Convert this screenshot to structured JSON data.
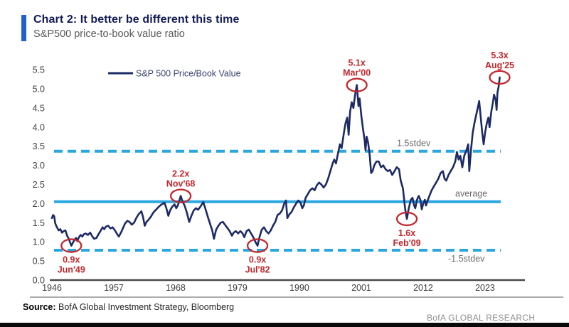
{
  "header": {
    "title": "Chart 2: It better be different this time",
    "subtitle": "S&P500 price-to-book value ratio"
  },
  "footer": {
    "source_label": "Source:",
    "source_text": " BofA Global Investment Strategy, Bloomberg",
    "brand": "BofA GLOBAL RESEARCH"
  },
  "colors": {
    "accent_blue": "#1e5fd2",
    "title_navy": "#121b55",
    "series_navy": "#1c2a66",
    "cyan": "#2aa7e1",
    "red": "#c2272d",
    "axis_gray": "#4a4a4a"
  },
  "chart_data": {
    "type": "line",
    "legend": [
      "S&P 500 Price/Book Value"
    ],
    "xlabel": "",
    "ylabel": "",
    "xlim": [
      1946,
      2030
    ],
    "ylim": [
      0,
      5.5
    ],
    "grid": false,
    "legend_position": "top-left",
    "x_ticks": [
      1946,
      1957,
      1968,
      1979,
      1990,
      2001,
      2012,
      2023
    ],
    "y_ticks": [
      0.0,
      0.5,
      1.0,
      1.5,
      2.0,
      2.5,
      3.0,
      3.5,
      4.0,
      4.5,
      5.0,
      5.5
    ],
    "reference_lines": [
      {
        "label": "1.5stdev",
        "value": 3.37,
        "style": "dashed"
      },
      {
        "label": "average",
        "value": 2.05,
        "style": "solid"
      },
      {
        "label": "-1.5stdev",
        "value": 0.78,
        "style": "dashed"
      }
    ],
    "annotations": [
      {
        "value_label": "0.9x",
        "date_label": "Jun'49",
        "x": 1949.45,
        "y": 0.9,
        "text_position": "below"
      },
      {
        "value_label": "2.2x",
        "date_label": "Nov'68",
        "x": 1968.9,
        "y": 2.2,
        "text_position": "above"
      },
      {
        "value_label": "0.9x",
        "date_label": "Jul'82",
        "x": 1982.55,
        "y": 0.9,
        "text_position": "below"
      },
      {
        "value_label": "5.1x",
        "date_label": "Mar'00",
        "x": 2000.2,
        "y": 5.1,
        "text_position": "above"
      },
      {
        "value_label": "1.6x",
        "date_label": "Feb'09",
        "x": 2009.1,
        "y": 1.6,
        "text_position": "below"
      },
      {
        "value_label": "5.3x",
        "date_label": "Aug'25",
        "x": 2025.6,
        "y": 5.3,
        "text_position": "above"
      }
    ],
    "series": [
      {
        "name": "S&P 500 Price/Book Value",
        "points": [
          [
            1946.0,
            1.62
          ],
          [
            1946.2,
            1.7
          ],
          [
            1946.4,
            1.67
          ],
          [
            1946.6,
            1.48
          ],
          [
            1946.9,
            1.38
          ],
          [
            1947.2,
            1.3
          ],
          [
            1947.5,
            1.33
          ],
          [
            1947.8,
            1.24
          ],
          [
            1948.1,
            1.28
          ],
          [
            1948.4,
            1.3
          ],
          [
            1948.7,
            1.16
          ],
          [
            1949.0,
            1.08
          ],
          [
            1949.2,
            1.0
          ],
          [
            1949.45,
            0.9
          ],
          [
            1949.7,
            0.97
          ],
          [
            1950.0,
            1.05
          ],
          [
            1950.3,
            1.1
          ],
          [
            1950.5,
            1.02
          ],
          [
            1950.8,
            1.12
          ],
          [
            1951.1,
            1.18
          ],
          [
            1951.4,
            1.14
          ],
          [
            1951.7,
            1.2
          ],
          [
            1952.0,
            1.22
          ],
          [
            1952.4,
            1.18
          ],
          [
            1952.8,
            1.24
          ],
          [
            1953.1,
            1.16
          ],
          [
            1953.5,
            1.08
          ],
          [
            1953.9,
            1.1
          ],
          [
            1954.3,
            1.2
          ],
          [
            1954.7,
            1.3
          ],
          [
            1955.0,
            1.38
          ],
          [
            1955.3,
            1.33
          ],
          [
            1955.6,
            1.4
          ],
          [
            1956.0,
            1.42
          ],
          [
            1956.4,
            1.35
          ],
          [
            1956.8,
            1.38
          ],
          [
            1957.2,
            1.3
          ],
          [
            1957.6,
            1.2
          ],
          [
            1957.9,
            1.14
          ],
          [
            1958.3,
            1.25
          ],
          [
            1958.7,
            1.38
          ],
          [
            1959.0,
            1.48
          ],
          [
            1959.4,
            1.55
          ],
          [
            1959.8,
            1.52
          ],
          [
            1960.2,
            1.45
          ],
          [
            1960.6,
            1.5
          ],
          [
            1961.0,
            1.62
          ],
          [
            1961.4,
            1.72
          ],
          [
            1961.9,
            1.8
          ],
          [
            1962.2,
            1.65
          ],
          [
            1962.5,
            1.42
          ],
          [
            1962.8,
            1.52
          ],
          [
            1963.2,
            1.58
          ],
          [
            1963.6,
            1.66
          ],
          [
            1964.0,
            1.76
          ],
          [
            1964.5,
            1.84
          ],
          [
            1965.0,
            1.92
          ],
          [
            1965.5,
            1.98
          ],
          [
            1966.0,
            2.02
          ],
          [
            1966.3,
            1.9
          ],
          [
            1966.7,
            1.68
          ],
          [
            1967.0,
            1.82
          ],
          [
            1967.4,
            1.92
          ],
          [
            1967.8,
            1.98
          ],
          [
            1968.1,
            1.88
          ],
          [
            1968.4,
            1.96
          ],
          [
            1968.9,
            2.2
          ],
          [
            1969.2,
            2.06
          ],
          [
            1969.6,
            1.94
          ],
          [
            1970.0,
            1.76
          ],
          [
            1970.4,
            1.52
          ],
          [
            1970.8,
            1.68
          ],
          [
            1971.2,
            1.82
          ],
          [
            1971.6,
            1.88
          ],
          [
            1972.0,
            1.84
          ],
          [
            1972.4,
            1.92
          ],
          [
            1972.9,
            2.04
          ],
          [
            1973.3,
            1.86
          ],
          [
            1973.7,
            1.66
          ],
          [
            1974.1,
            1.48
          ],
          [
            1974.5,
            1.3
          ],
          [
            1974.8,
            1.08
          ],
          [
            1975.2,
            1.32
          ],
          [
            1975.6,
            1.42
          ],
          [
            1976.0,
            1.5
          ],
          [
            1976.4,
            1.52
          ],
          [
            1976.8,
            1.44
          ],
          [
            1977.2,
            1.36
          ],
          [
            1977.6,
            1.28
          ],
          [
            1978.0,
            1.16
          ],
          [
            1978.3,
            1.24
          ],
          [
            1978.7,
            1.28
          ],
          [
            1979.1,
            1.22
          ],
          [
            1979.5,
            1.28
          ],
          [
            1979.9,
            1.22
          ],
          [
            1980.2,
            1.12
          ],
          [
            1980.6,
            1.28
          ],
          [
            1981.0,
            1.32
          ],
          [
            1981.4,
            1.22
          ],
          [
            1981.8,
            1.12
          ],
          [
            1982.1,
            1.02
          ],
          [
            1982.55,
            0.9
          ],
          [
            1982.9,
            1.12
          ],
          [
            1983.3,
            1.32
          ],
          [
            1983.7,
            1.38
          ],
          [
            1984.1,
            1.28
          ],
          [
            1984.5,
            1.22
          ],
          [
            1984.9,
            1.3
          ],
          [
            1985.3,
            1.42
          ],
          [
            1985.7,
            1.52
          ],
          [
            1986.1,
            1.7
          ],
          [
            1986.5,
            1.74
          ],
          [
            1986.9,
            1.82
          ],
          [
            1987.3,
            2.0
          ],
          [
            1987.6,
            2.08
          ],
          [
            1987.85,
            1.62
          ],
          [
            1988.2,
            1.72
          ],
          [
            1988.6,
            1.78
          ],
          [
            1989.0,
            1.9
          ],
          [
            1989.4,
            2.0
          ],
          [
            1989.8,
            2.08
          ],
          [
            1990.2,
            2.02
          ],
          [
            1990.5,
            1.88
          ],
          [
            1990.8,
            1.96
          ],
          [
            1991.1,
            2.15
          ],
          [
            1991.5,
            2.25
          ],
          [
            1991.9,
            2.35
          ],
          [
            1992.3,
            2.4
          ],
          [
            1992.7,
            2.35
          ],
          [
            1993.1,
            2.48
          ],
          [
            1993.5,
            2.55
          ],
          [
            1993.9,
            2.5
          ],
          [
            1994.3,
            2.42
          ],
          [
            1994.7,
            2.5
          ],
          [
            1995.1,
            2.65
          ],
          [
            1995.5,
            2.85
          ],
          [
            1995.9,
            3.05
          ],
          [
            1996.2,
            3.15
          ],
          [
            1996.5,
            3.05
          ],
          [
            1996.9,
            3.35
          ],
          [
            1997.2,
            3.55
          ],
          [
            1997.5,
            3.45
          ],
          [
            1997.9,
            3.85
          ],
          [
            1998.2,
            4.1
          ],
          [
            1998.5,
            4.25
          ],
          [
            1998.75,
            3.8
          ],
          [
            1999.0,
            4.4
          ],
          [
            1999.3,
            4.65
          ],
          [
            1999.6,
            4.5
          ],
          [
            1999.9,
            4.85
          ],
          [
            2000.2,
            5.1
          ],
          [
            2000.5,
            4.55
          ],
          [
            2000.7,
            4.75
          ],
          [
            2001.0,
            4.3
          ],
          [
            2001.3,
            3.95
          ],
          [
            2001.6,
            3.65
          ],
          [
            2001.75,
            3.4
          ],
          [
            2001.95,
            3.75
          ],
          [
            2002.2,
            3.6
          ],
          [
            2002.5,
            3.25
          ],
          [
            2002.75,
            2.8
          ],
          [
            2003.0,
            2.85
          ],
          [
            2003.3,
            3.0
          ],
          [
            2003.7,
            3.1
          ],
          [
            2004.1,
            3.1
          ],
          [
            2004.5,
            2.95
          ],
          [
            2004.9,
            3.0
          ],
          [
            2005.3,
            2.9
          ],
          [
            2005.7,
            2.85
          ],
          [
            2006.1,
            2.88
          ],
          [
            2006.5,
            2.75
          ],
          [
            2006.9,
            2.85
          ],
          [
            2007.3,
            2.95
          ],
          [
            2007.7,
            2.9
          ],
          [
            2008.0,
            2.6
          ],
          [
            2008.4,
            2.4
          ],
          [
            2008.8,
            1.85
          ],
          [
            2009.1,
            1.6
          ],
          [
            2009.4,
            1.85
          ],
          [
            2009.8,
            2.1
          ],
          [
            2010.1,
            2.15
          ],
          [
            2010.4,
            1.95
          ],
          [
            2010.6,
            1.88
          ],
          [
            2010.9,
            2.1
          ],
          [
            2011.2,
            2.2
          ],
          [
            2011.5,
            2.1
          ],
          [
            2011.75,
            1.85
          ],
          [
            2012.0,
            2.0
          ],
          [
            2012.3,
            2.1
          ],
          [
            2012.5,
            1.95
          ],
          [
            2012.8,
            2.08
          ],
          [
            2013.1,
            2.2
          ],
          [
            2013.5,
            2.35
          ],
          [
            2013.9,
            2.45
          ],
          [
            2014.3,
            2.55
          ],
          [
            2014.7,
            2.65
          ],
          [
            2015.1,
            2.8
          ],
          [
            2015.5,
            2.85
          ],
          [
            2015.8,
            2.65
          ],
          [
            2016.1,
            2.6
          ],
          [
            2016.5,
            2.75
          ],
          [
            2016.9,
            2.85
          ],
          [
            2017.3,
            2.95
          ],
          [
            2017.7,
            3.1
          ],
          [
            2018.0,
            3.35
          ],
          [
            2018.3,
            3.15
          ],
          [
            2018.6,
            3.25
          ],
          [
            2018.95,
            2.95
          ],
          [
            2019.3,
            3.25
          ],
          [
            2019.7,
            3.4
          ],
          [
            2020.0,
            3.55
          ],
          [
            2020.2,
            2.85
          ],
          [
            2020.5,
            3.4
          ],
          [
            2020.8,
            3.85
          ],
          [
            2021.1,
            4.1
          ],
          [
            2021.4,
            4.3
          ],
          [
            2021.7,
            4.5
          ],
          [
            2021.95,
            4.68
          ],
          [
            2022.2,
            4.3
          ],
          [
            2022.5,
            3.85
          ],
          [
            2022.75,
            3.55
          ],
          [
            2023.0,
            3.85
          ],
          [
            2023.3,
            4.1
          ],
          [
            2023.6,
            4.25
          ],
          [
            2023.8,
            4.0
          ],
          [
            2024.1,
            4.4
          ],
          [
            2024.4,
            4.65
          ],
          [
            2024.6,
            4.85
          ],
          [
            2024.9,
            4.7
          ],
          [
            2025.05,
            4.45
          ],
          [
            2025.2,
            4.9
          ],
          [
            2025.4,
            5.05
          ],
          [
            2025.6,
            5.3
          ]
        ]
      }
    ]
  }
}
